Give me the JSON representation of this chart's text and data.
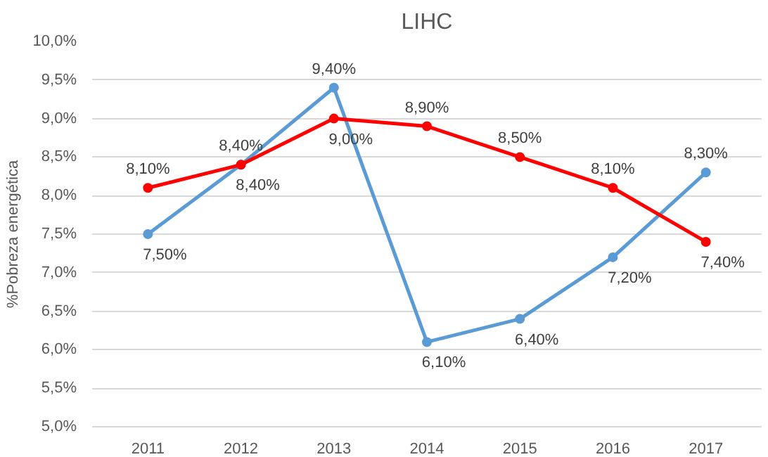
{
  "chart_data": {
    "type": "line",
    "title": "LIHC",
    "ylabel": "%Pobreza energética",
    "categories": [
      "2011",
      "2012",
      "2013",
      "2014",
      "2015",
      "2016",
      "2017"
    ],
    "series": [
      {
        "color": "#5b9bd5",
        "values": [
          7.5,
          8.4,
          9.4,
          6.1,
          6.4,
          7.2,
          8.3
        ],
        "value_labels": [
          "7,50%",
          "8,40%",
          "9,40%",
          "6,10%",
          "6,40%",
          "7,20%",
          "8,30%"
        ]
      },
      {
        "color": "#ff0000",
        "values": [
          8.1,
          8.4,
          9.0,
          8.9,
          8.5,
          8.1,
          7.4
        ],
        "value_labels": [
          "8,10%",
          "8,40%",
          "9,00%",
          "8,90%",
          "8,50%",
          "8,10%",
          "7,40%"
        ]
      }
    ],
    "ylim": [
      5,
      10
    ],
    "yticks": [
      {
        "value": 5,
        "label": "5,0%"
      },
      {
        "value": 5.5,
        "label": "5,5%"
      },
      {
        "value": 6,
        "label": "6,0%"
      },
      {
        "value": 6.5,
        "label": "6,5%"
      },
      {
        "value": 7,
        "label": "7,0%"
      },
      {
        "value": 7.5,
        "label": "7,5%"
      },
      {
        "value": 8,
        "label": "8,0%"
      },
      {
        "value": 8.5,
        "label": "8,5%"
      },
      {
        "value": 9,
        "label": "9,0%"
      },
      {
        "value": 9.5,
        "label": "9,5%"
      },
      {
        "value": 10,
        "label": "10,0%"
      }
    ],
    "grid": "y",
    "marker": "circle",
    "line_style": "solid"
  }
}
